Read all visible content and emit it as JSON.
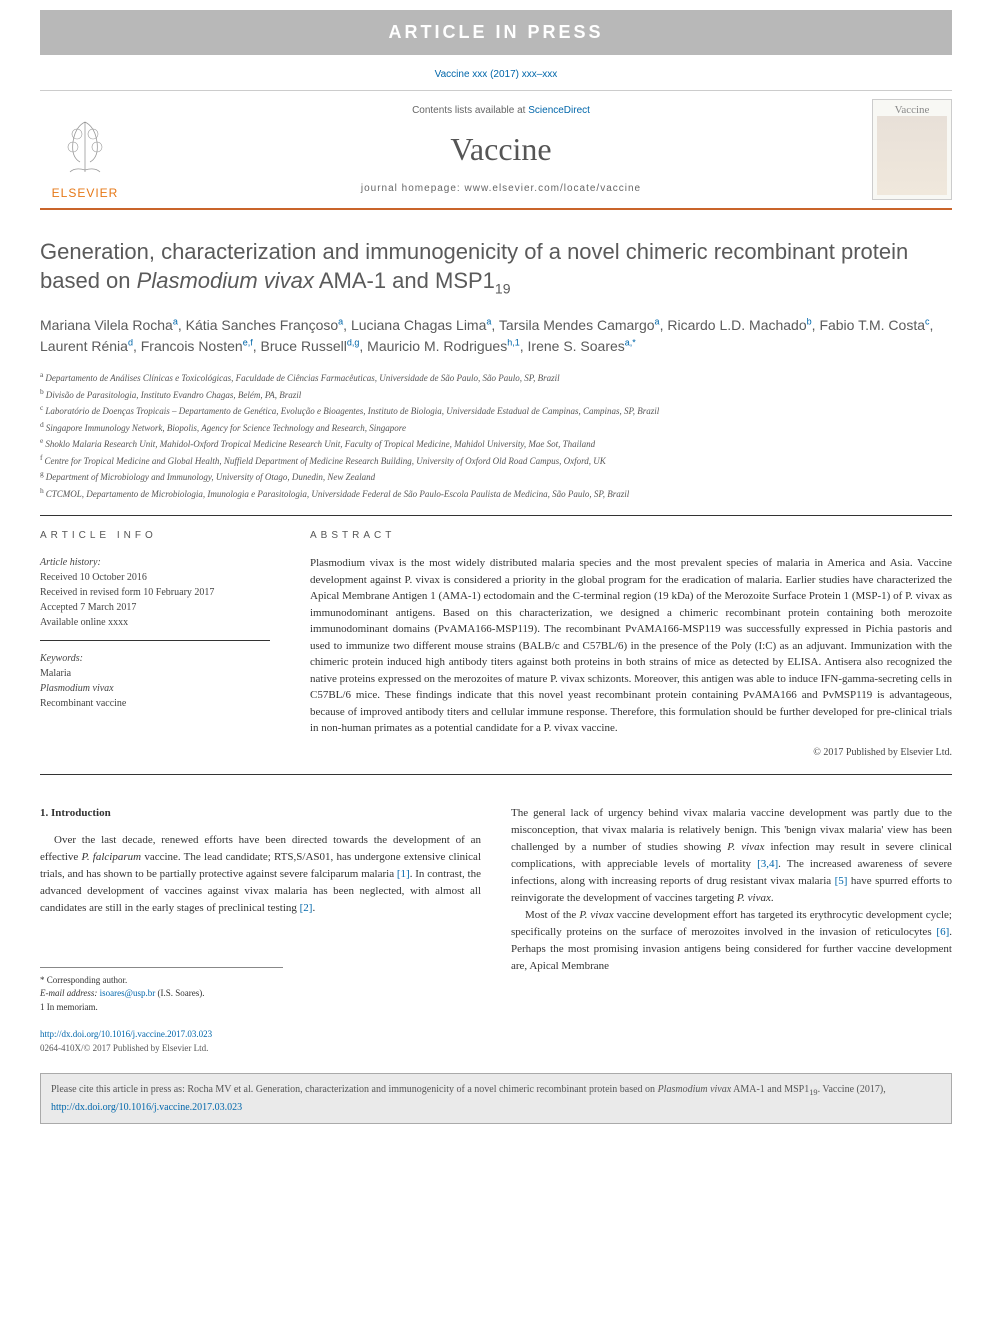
{
  "banner": {
    "text": "ARTICLE IN PRESS"
  },
  "citation": "Vaccine xxx (2017) xxx–xxx",
  "masthead": {
    "publisher": "ELSEVIER",
    "contents_prefix": "Contents lists available at ",
    "contents_link": "ScienceDirect",
    "journal": "Vaccine",
    "homepage_label": "journal homepage: ",
    "homepage_url": "www.elsevier.com/locate/vaccine",
    "cover_title": "Vaccine"
  },
  "title_pre": "Generation, characterization and immunogenicity of a novel chimeric recombinant protein based on ",
  "title_em": "Plasmodium vivax",
  "title_post": " AMA-1 and MSP1",
  "title_sub": "19",
  "authors": [
    {
      "name": "Mariana Vilela Rocha",
      "sup": "a"
    },
    {
      "name": "Kátia Sanches Françoso",
      "sup": "a"
    },
    {
      "name": "Luciana Chagas Lima",
      "sup": "a"
    },
    {
      "name": "Tarsila Mendes Camargo",
      "sup": "a"
    },
    {
      "name": "Ricardo L.D. Machado",
      "sup": "b"
    },
    {
      "name": "Fabio T.M. Costa",
      "sup": "c"
    },
    {
      "name": "Laurent Rénia",
      "sup": "d"
    },
    {
      "name": "Francois Nosten",
      "sup": "e,f"
    },
    {
      "name": "Bruce Russell",
      "sup": "d,g"
    },
    {
      "name": "Mauricio M. Rodrigues",
      "sup": "h,1"
    },
    {
      "name": "Irene S. Soares",
      "sup": "a,*"
    }
  ],
  "affiliations": [
    {
      "sup": "a",
      "text": "Departamento de Análises Clínicas e Toxicológicas, Faculdade de Ciências Farmacêuticas, Universidade de São Paulo, São Paulo, SP, Brazil"
    },
    {
      "sup": "b",
      "text": "Divisão de Parasitologia, Instituto Evandro Chagas, Belém, PA, Brazil"
    },
    {
      "sup": "c",
      "text": "Laboratório de Doenças Tropicais – Departamento de Genética, Evolução e Bioagentes, Instituto de Biologia, Universidade Estadual de Campinas, Campinas, SP, Brazil"
    },
    {
      "sup": "d",
      "text": "Singapore Immunology Network, Biopolis, Agency for Science Technology and Research, Singapore"
    },
    {
      "sup": "e",
      "text": "Shoklo Malaria Research Unit, Mahidol-Oxford Tropical Medicine Research Unit, Faculty of Tropical Medicine, Mahidol University, Mae Sot, Thailand"
    },
    {
      "sup": "f",
      "text": "Centre for Tropical Medicine and Global Health, Nuffield Department of Medicine Research Building, University of Oxford Old Road Campus, Oxford, UK"
    },
    {
      "sup": "g",
      "text": "Department of Microbiology and Immunology, University of Otago, Dunedin, New Zealand"
    },
    {
      "sup": "h",
      "text": "CTCMOL, Departamento de Microbiologia, Imunologia e Parasitologia, Universidade Federal de São Paulo-Escola Paulista de Medicina, São Paulo, SP, Brazil"
    }
  ],
  "info": {
    "heading": "article info",
    "history_label": "Article history:",
    "received": "Received 10 October 2016",
    "revised": "Received in revised form 10 February 2017",
    "accepted": "Accepted 7 March 2017",
    "online": "Available online xxxx",
    "keywords_label": "Keywords:",
    "keywords": [
      "Malaria",
      "Plasmodium vivax",
      "Recombinant vaccine"
    ]
  },
  "abstract": {
    "heading": "abstract",
    "text": "Plasmodium vivax is the most widely distributed malaria species and the most prevalent species of malaria in America and Asia. Vaccine development against P. vivax is considered a priority in the global program for the eradication of malaria. Earlier studies have characterized the Apical Membrane Antigen 1 (AMA-1) ectodomain and the C-terminal region (19 kDa) of the Merozoite Surface Protein 1 (MSP-1) of P. vivax as immunodominant antigens. Based on this characterization, we designed a chimeric recombinant protein containing both merozoite immunodominant domains (PvAMA166-MSP119). The recombinant PvAMA166-MSP119 was successfully expressed in Pichia pastoris and used to immunize two different mouse strains (BALB/c and C57BL/6) in the presence of the Poly (I:C) as an adjuvant. Immunization with the chimeric protein induced high antibody titers against both proteins in both strains of mice as detected by ELISA. Antisera also recognized the native proteins expressed on the merozoites of mature P. vivax schizonts. Moreover, this antigen was able to induce IFN-gamma-secreting cells in C57BL/6 mice. These findings indicate that this novel yeast recombinant protein containing PvAMA166 and PvMSP119 is advantageous, because of improved antibody titers and cellular immune response. Therefore, this formulation should be further developed for pre-clinical trials in non-human primates as a potential candidate for a P. vivax vaccine.",
    "copyright": "© 2017 Published by Elsevier Ltd."
  },
  "intro": {
    "heading": "1. Introduction",
    "p1": "Over the last decade, renewed efforts have been directed towards the development of an effective P. falciparum vaccine. The lead candidate; RTS,S/AS01, has undergone extensive clinical trials, and has shown to be partially protective against severe falciparum malaria [1]. In contrast, the advanced development of vaccines against vivax malaria has been neglected, with almost all candidates are still in the early stages of preclinical testing [2].",
    "p2": "The general lack of urgency behind vivax malaria vaccine development was partly due to the misconception, that vivax malaria is relatively benign. This 'benign vivax malaria' view has been challenged by a number of studies showing P. vivax infection may result in severe clinical complications, with appreciable levels of mortality [3,4]. The increased awareness of severe infections, along with increasing reports of drug resistant vivax malaria [5] have spurred efforts to reinvigorate the development of vaccines targeting P. vivax.",
    "p3": "Most of the P. vivax vaccine development effort has targeted its erythrocytic development cycle; specifically proteins on the surface of merozoites involved in the invasion of reticulocytes [6]. Perhaps the most promising invasion antigens being considered for further vaccine development are, Apical Membrane"
  },
  "footnotes": {
    "corresponding": "* Corresponding author.",
    "email_label": "E-mail address: ",
    "email": "isoares@usp.br",
    "email_person": " (I.S. Soares).",
    "memoriam": "1 In memoriam.",
    "doi": "http://dx.doi.org/10.1016/j.vaccine.2017.03.023",
    "issn_copyright": "0264-410X/© 2017 Published by Elsevier Ltd."
  },
  "citebox": {
    "pre": "Please cite this article in press as: Rocha MV et al. Generation, characterization and immunogenicity of a novel chimeric recombinant protein based on ",
    "em": "Plasmodium vivax",
    "post1": " AMA-1 and MSP1",
    "sub": "19",
    "post2": ". Vaccine (2017), ",
    "link": "http://dx.doi.org/10.1016/j.vaccine.2017.03.023"
  },
  "colors": {
    "banner_bg": "#b8b8b8",
    "accent_orange": "#c9642a",
    "elsevier_orange": "#e67817",
    "link_blue": "#0066aa",
    "heading_gray": "#5a5a5a",
    "citebox_bg": "#eaeaea"
  }
}
